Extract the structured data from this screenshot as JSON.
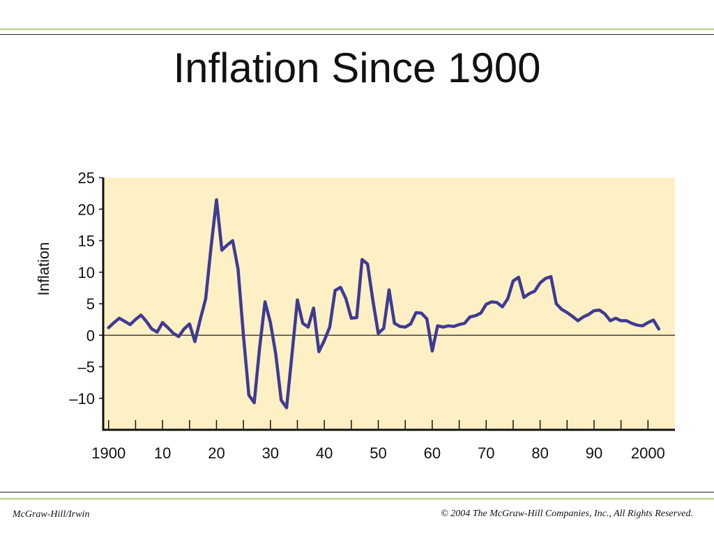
{
  "slide": {
    "title": "Inflation Since 1900",
    "footer_left": "McGraw-Hill/Irwin",
    "footer_right": "© 2004 The McGraw-Hill Companies, Inc., All Rights Reserved."
  },
  "colors": {
    "plot_background": "#fdf0c4",
    "line": "#3f3a94",
    "rule_green": "#b5cf7a"
  },
  "chart_data": {
    "type": "line",
    "title": "",
    "xlabel": "",
    "ylabel": "Inflation",
    "xlim": [
      1899,
      2005
    ],
    "ylim": [
      -15,
      25
    ],
    "y_ticks": [
      25,
      20,
      15,
      10,
      5,
      0,
      -5,
      -10
    ],
    "y_tick_labels": [
      "25",
      "20",
      "15",
      "10",
      "5",
      "0",
      "–5",
      "–10"
    ],
    "x_ticks": [
      1900,
      1910,
      1920,
      1930,
      1940,
      1950,
      1960,
      1970,
      1980,
      1990,
      2000
    ],
    "x_tick_labels": [
      "1900",
      "10",
      "20",
      "30",
      "40",
      "50",
      "60",
      "70",
      "80",
      "90",
      "2000"
    ],
    "zero_line": true,
    "series": [
      {
        "name": "",
        "x": [
          1900,
          1901,
          1902,
          1903,
          1904,
          1905,
          1906,
          1907,
          1908,
          1909,
          1910,
          1911,
          1912,
          1913,
          1914,
          1915,
          1916,
          1917,
          1918,
          1919,
          1920,
          1921,
          1922,
          1923,
          1924,
          1925,
          1926,
          1927,
          1928,
          1929,
          1930,
          1931,
          1932,
          1933,
          1934,
          1935,
          1936,
          1937,
          1938,
          1939,
          1940,
          1941,
          1942,
          1943,
          1944,
          1945,
          1946,
          1947,
          1948,
          1949,
          1950,
          1951,
          1952,
          1953,
          1954,
          1955,
          1956,
          1957,
          1958,
          1959,
          1960,
          1961,
          1962,
          1963,
          1964,
          1965,
          1966,
          1967,
          1968,
          1969,
          1970,
          1971,
          1972,
          1973,
          1974,
          1975,
          1976,
          1977,
          1978,
          1979,
          1980,
          1981,
          1982,
          1983,
          1984,
          1985,
          1986,
          1987,
          1988,
          1989,
          1990,
          1991,
          1992,
          1993,
          1994,
          1995,
          1996,
          1997,
          1998,
          1999,
          2000,
          2001,
          2002
        ],
        "values": [
          1.2,
          2,
          2.7,
          2.2,
          1.7,
          2.5,
          3.2,
          2.2,
          1.0,
          0.5,
          2.0,
          1.2,
          0.3,
          -0.2,
          1.0,
          1.8,
          -1.0,
          2.5,
          5.8,
          14,
          21.5,
          13.5,
          14.3,
          15,
          10.5,
          0,
          -9.5,
          -10.7,
          -2,
          5.3,
          2,
          -3,
          -10.3,
          -11.5,
          -3,
          5.6,
          1.9,
          1.3,
          4.3,
          -2.6,
          -0.8,
          1.3,
          7.1,
          7.6,
          5.8,
          2.7,
          2.8,
          12,
          11.3,
          5.5,
          0.3,
          1.1,
          7.2,
          1.9,
          1.4,
          1.3,
          1.8,
          3.6,
          3.5,
          2.6,
          -2.5,
          1.5,
          1.3,
          1.5,
          1.4,
          1.7,
          1.9,
          2.9,
          3.1,
          3.5,
          4.9,
          5.3,
          5.2,
          4.5,
          5.8,
          8.6,
          9.2,
          6.0,
          6.6,
          7.0,
          8.3,
          9.0,
          9.3,
          5.0,
          4.1,
          3.6,
          3.0,
          2.3,
          2.9,
          3.3,
          3.9,
          4.0,
          3.4,
          2.3,
          2.7,
          2.3,
          2.3,
          1.9,
          1.6,
          1.5,
          2.0,
          2.4,
          1.0
        ]
      }
    ]
  }
}
